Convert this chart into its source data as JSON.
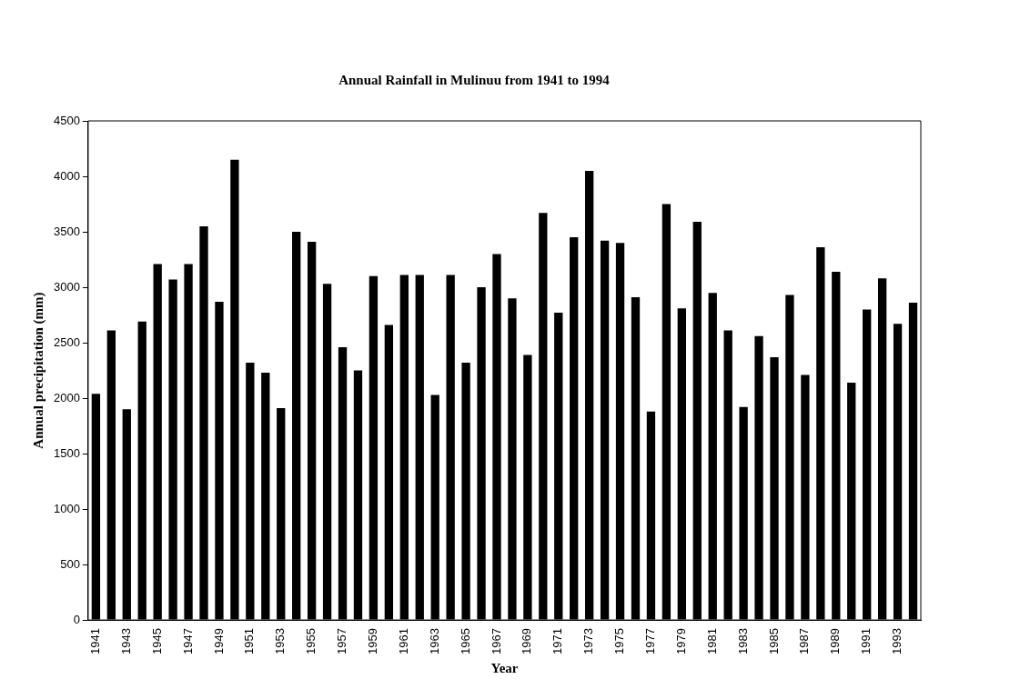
{
  "chart_data": {
    "type": "bar",
    "title": "Annual Rainfall in Mulinuu from 1941 to 1994",
    "xlabel": "Year",
    "ylabel": "Annual precipitation (mm)",
    "categories": [
      "1941",
      null,
      "1943",
      null,
      "1945",
      null,
      "1947",
      null,
      "1949",
      null,
      "1951",
      null,
      "1953",
      null,
      "1955",
      null,
      "1957",
      null,
      "1959",
      null,
      "1961",
      null,
      "1963",
      null,
      "1965",
      null,
      "1967",
      null,
      "1969",
      null,
      "1971",
      null,
      "1973",
      null,
      "1975",
      null,
      "1977",
      null,
      "1979",
      null,
      "1981",
      null,
      "1983",
      null,
      "1985",
      null,
      "1987",
      null,
      "1989",
      null,
      "1991",
      null,
      "1993",
      null
    ],
    "values": [
      2040,
      2610,
      1900,
      2690,
      3210,
      3070,
      3210,
      3550,
      2870,
      4150,
      2320,
      2230,
      1910,
      3500,
      3410,
      3030,
      2460,
      2250,
      3100,
      2660,
      3110,
      3110,
      2030,
      3110,
      2320,
      3000,
      3300,
      2900,
      2390,
      3670,
      2770,
      3450,
      4050,
      3420,
      3400,
      2910,
      1880,
      3750,
      2810,
      3590,
      2950,
      2610,
      1920,
      2560,
      2370,
      2930,
      2210,
      3360,
      3140,
      2140,
      2800,
      3080,
      2670,
      2860
    ],
    "color": "#000000",
    "ylim": [
      0,
      4500
    ],
    "yticks": [
      0,
      500,
      1000,
      1500,
      2000,
      2500,
      3000,
      3500,
      4000,
      4500
    ],
    "grid": false,
    "legend": false
  }
}
